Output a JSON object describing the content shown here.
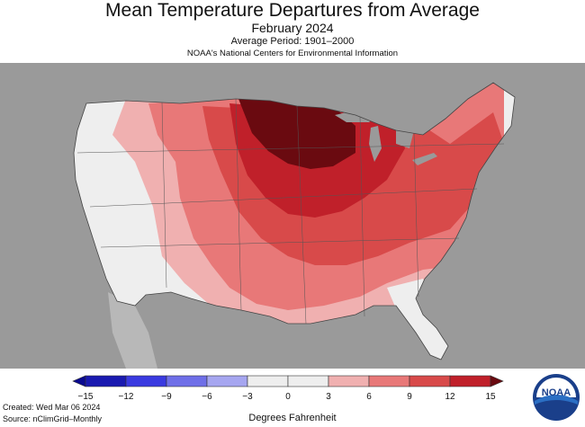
{
  "header": {
    "title": "Mean Temperature Departures from Average",
    "subtitle": "February 2024",
    "period": "Average Period: 1901–2000",
    "source": "NOAA's National Centers for Environmental Information"
  },
  "legend": {
    "ticks": [
      "−15",
      "−12",
      "−9",
      "−6",
      "−3",
      "0",
      "3",
      "6",
      "9",
      "12",
      "15"
    ],
    "colors": [
      "#1a1ab0",
      "#3a3ae0",
      "#6f6fe8",
      "#a6a6f0",
      "#eeeeee",
      "#eeeeee",
      "#f0b0b0",
      "#e87878",
      "#d84a4a",
      "#c0202a"
    ],
    "under_color": "#0a0a90",
    "over_color": "#6a0a10",
    "units": "Degrees Fahrenheit"
  },
  "footer": {
    "created": "Created: Wed Mar 06 2024",
    "source": "Source: nClimGrid–Monthly"
  },
  "logo": {
    "text": "NOAA"
  },
  "map_colors": {
    "land_outside": "#9a9a9a",
    "lakes": "#9a9a9a",
    "near_normal": "#eeeeee",
    "warm_3_6": "#f0b0b0",
    "warm_6_9": "#e87878",
    "warm_9_12": "#d84a4a",
    "warm_12_15": "#c0202a",
    "warm_over_15": "#6a0a10"
  }
}
